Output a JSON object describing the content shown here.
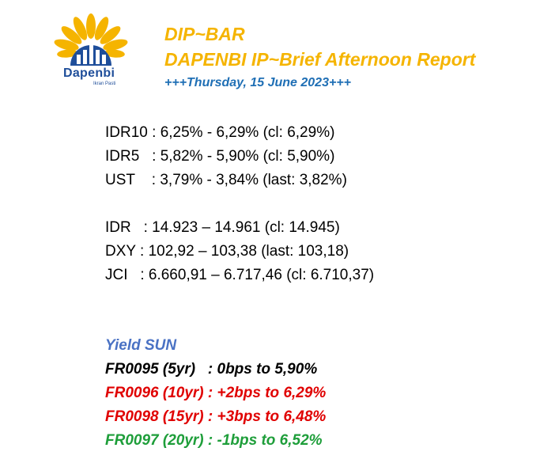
{
  "logo": {
    "brand": "Dapenbi",
    "tagline": "Ikran Pasti",
    "icon": "sunflower-building-logo"
  },
  "header": {
    "title": "DIP~BAR",
    "subtitle": "DAPENBI IP~Brief Afternoon Report",
    "date": "+++Thursday, 15 June 2023+++"
  },
  "rates": [
    {
      "label": "IDR10",
      "value": " : 6,25% - 6,29% (cl: 6,29%)"
    },
    {
      "label": "IDR5",
      "value": "   : 5,82% - 5,90% (cl: 5,90%)"
    },
    {
      "label": "UST",
      "value": "    : 3,79% - 3,84% (last: 3,82%)"
    }
  ],
  "markets": [
    {
      "label": "IDR",
      "value": "   : 14.923 – 14.961 (cl: 14.945)"
    },
    {
      "label": "DXY",
      "value": " : 102,92 – 103,38 (last: 103,18)"
    },
    {
      "label": "JCI",
      "value": "   : 6.660,91 – 6.717,46 (cl: 6.710,37)"
    }
  ],
  "yield": {
    "heading": "Yield SUN",
    "items": [
      {
        "text": "FR0095 (5yr)   : 0bps to 5,90%",
        "color": "#000000"
      },
      {
        "text": "FR0096 (10yr) : +2bps to 6,29%",
        "color": "#e00000"
      },
      {
        "text": "FR0098 (15yr) : +3bps to 6,48%",
        "color": "#e00000"
      },
      {
        "text": "FR0097 (20yr) : -1bps to 6,52%",
        "color": "#1e9e3a"
      }
    ]
  }
}
